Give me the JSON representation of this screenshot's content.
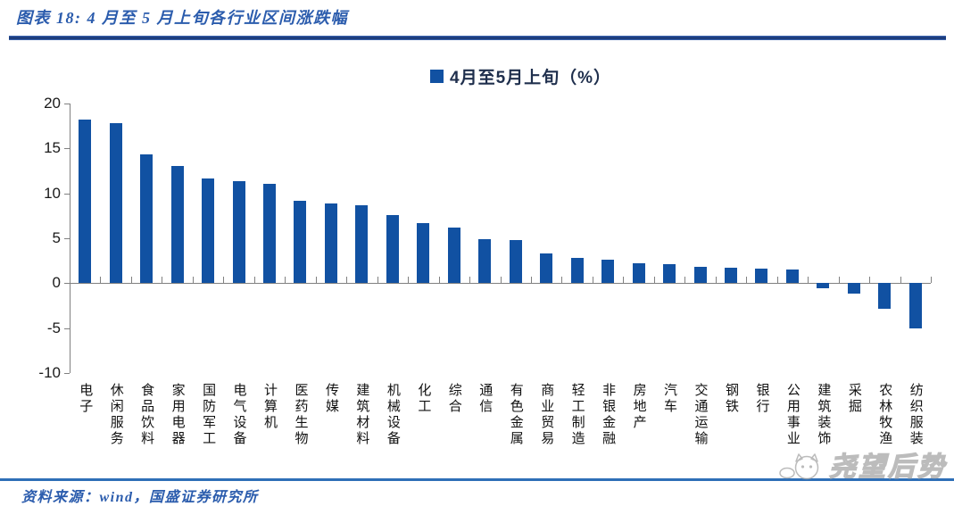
{
  "header": {
    "title": "图表 18:  4 月至 5 月上旬各行业区间涨跌幅"
  },
  "legend": {
    "label": "4月至5月上旬（%）"
  },
  "footer": {
    "source": "资料来源：wind，国盛证券研究所"
  },
  "watermark": {
    "text": "尧望后势",
    "icon": "cat-face-logo"
  },
  "colors": {
    "bar": "#1151A2",
    "title_blue": "#2B5CAD",
    "header_rule_dark": "#1D3D7C",
    "header_rule_light": "#4A77C9",
    "footer_rule": "#2E6FB7",
    "axis_gray": "#808080",
    "tick_label": "#1A1A1A",
    "watermark_gray": "#A6A6A6"
  },
  "chart_data": {
    "type": "bar",
    "title": "4月至5月上旬（%）",
    "xlabel": "",
    "ylabel": "",
    "ylim": [
      -10,
      20
    ],
    "yticks": [
      20,
      15,
      10,
      5,
      0,
      -5,
      -10
    ],
    "grid": false,
    "legend_position": "top-center",
    "bar_color": "#1151A2",
    "categories": [
      "电子",
      "休闲服务",
      "食品饮料",
      "家用电器",
      "国防军工",
      "电气设备",
      "计算机",
      "医药生物",
      "传媒",
      "建筑材料",
      "机械设备",
      "化工",
      "综合",
      "通信",
      "有色金属",
      "商业贸易",
      "轻工制造",
      "非银金融",
      "房地产",
      "汽车",
      "交通运输",
      "钢铁",
      "银行",
      "公用事业",
      "建筑装饰",
      "采掘",
      "农林牧渔",
      "纺织服装"
    ],
    "values": [
      18.2,
      17.8,
      14.3,
      13.0,
      11.7,
      11.4,
      11.1,
      9.2,
      8.9,
      8.7,
      7.6,
      6.7,
      6.2,
      4.9,
      4.8,
      3.3,
      2.8,
      2.6,
      2.2,
      2.1,
      1.8,
      1.7,
      1.6,
      1.5,
      -0.6,
      -1.2,
      -2.8,
      -5.0
    ]
  }
}
